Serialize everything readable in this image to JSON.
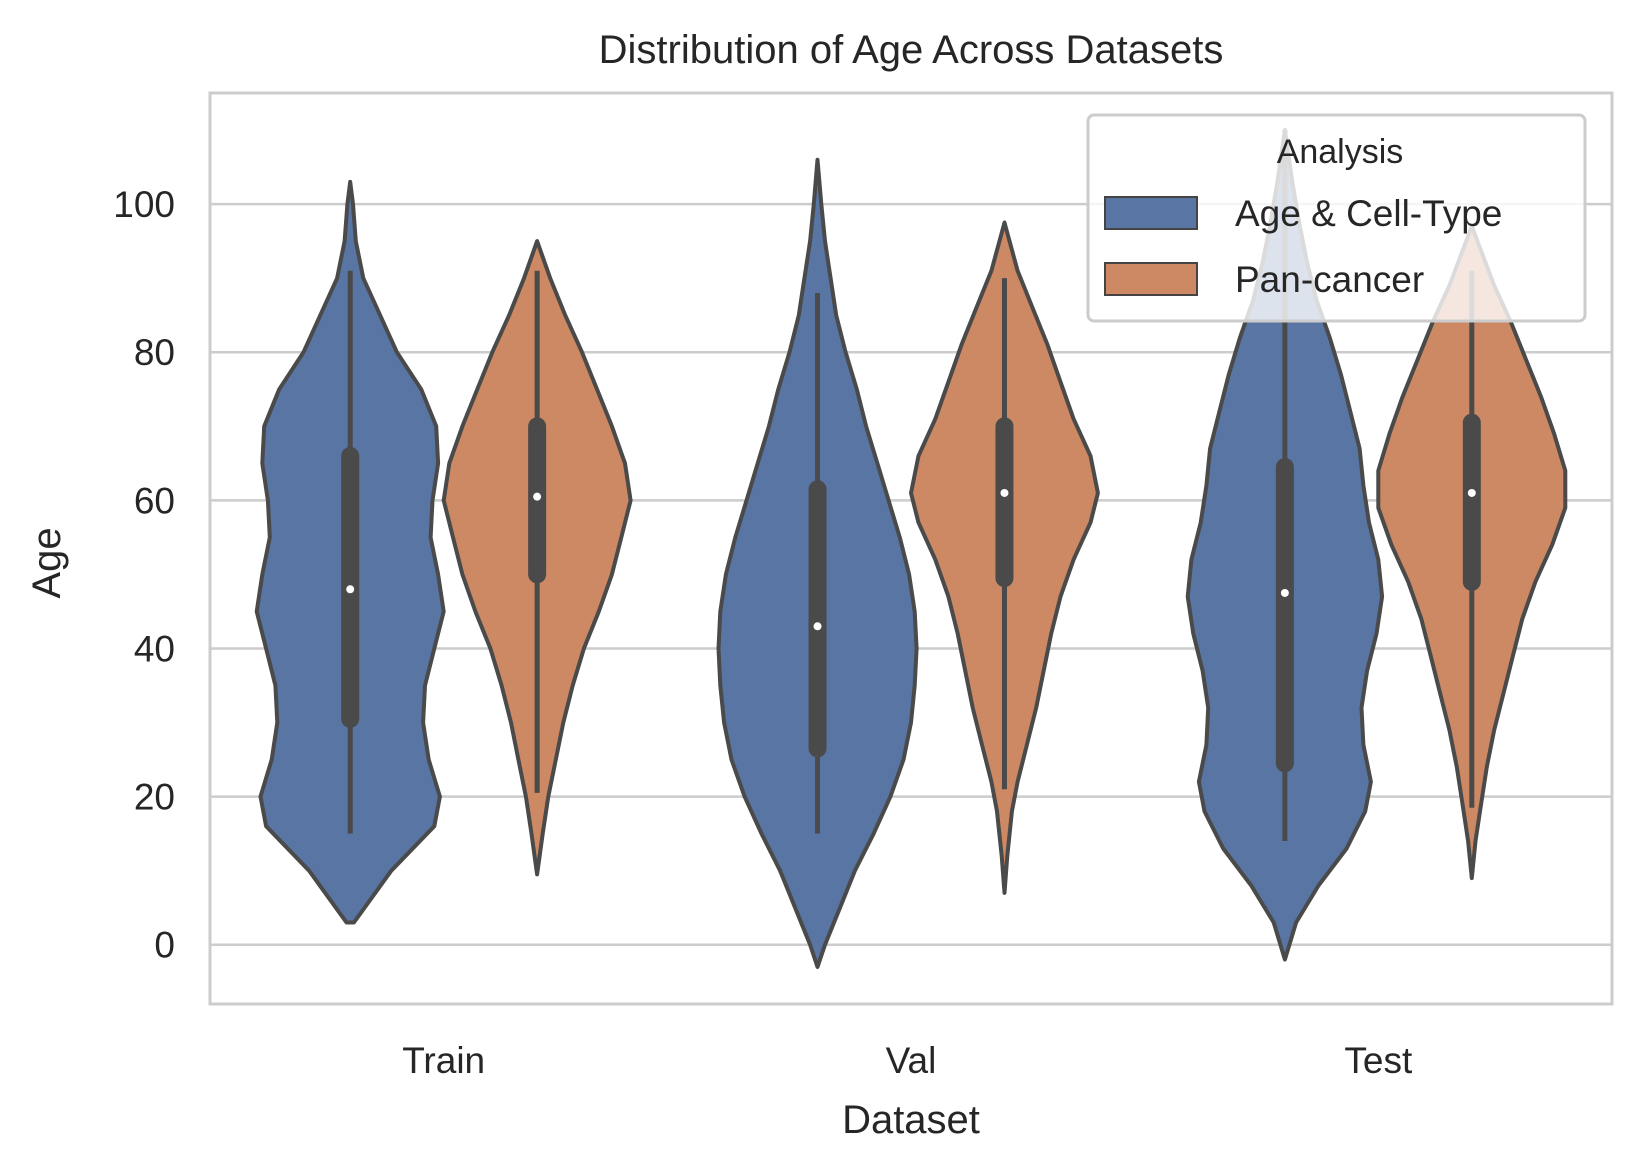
{
  "chart_data": {
    "type": "violin",
    "title": "Distribution of Age Across Datasets",
    "xlabel": "Dataset",
    "ylabel": "Age",
    "categories": [
      "Train",
      "Val",
      "Test"
    ],
    "ylim": [
      -8,
      115
    ],
    "yticks": [
      0,
      20,
      40,
      60,
      80,
      100
    ],
    "grid": "horizontal",
    "legend": {
      "title": "Analysis",
      "placement": "top-right",
      "entries": [
        "Age & Cell-Type",
        "Pan-cancer"
      ]
    },
    "series": [
      {
        "name": "Age & Cell-Type",
        "color": "#5875a4",
        "violins": [
          {
            "category": "Train",
            "min": 3,
            "max": 103,
            "whisker_low": 15,
            "whisker_high": 91,
            "q1": 30.5,
            "median": 48,
            "q3": 66,
            "profile": [
              [
                3,
                0.02
              ],
              [
                10,
                0.22
              ],
              [
                16,
                0.45
              ],
              [
                20,
                0.48
              ],
              [
                25,
                0.42
              ],
              [
                30,
                0.39
              ],
              [
                35,
                0.4
              ],
              [
                40,
                0.45
              ],
              [
                45,
                0.5
              ],
              [
                50,
                0.47
              ],
              [
                55,
                0.43
              ],
              [
                60,
                0.44
              ],
              [
                65,
                0.47
              ],
              [
                70,
                0.46
              ],
              [
                75,
                0.38
              ],
              [
                80,
                0.25
              ],
              [
                85,
                0.16
              ],
              [
                90,
                0.07
              ],
              [
                95,
                0.03
              ],
              [
                100,
                0.015
              ],
              [
                103,
                0
              ]
            ]
          },
          {
            "category": "Val",
            "min": -3,
            "max": 106,
            "whisker_low": 15,
            "whisker_high": 88,
            "q1": 26.5,
            "median": 43,
            "q3": 61.5,
            "profile": [
              [
                -3,
                0
              ],
              [
                0,
                0.04
              ],
              [
                5,
                0.12
              ],
              [
                10,
                0.2
              ],
              [
                15,
                0.3
              ],
              [
                20,
                0.39
              ],
              [
                25,
                0.46
              ],
              [
                30,
                0.5
              ],
              [
                35,
                0.52
              ],
              [
                40,
                0.53
              ],
              [
                45,
                0.52
              ],
              [
                50,
                0.49
              ],
              [
                55,
                0.44
              ],
              [
                60,
                0.38
              ],
              [
                65,
                0.32
              ],
              [
                70,
                0.26
              ],
              [
                75,
                0.21
              ],
              [
                80,
                0.15
              ],
              [
                85,
                0.1
              ],
              [
                90,
                0.07
              ],
              [
                95,
                0.04
              ],
              [
                100,
                0.02
              ],
              [
                106,
                0
              ]
            ]
          },
          {
            "category": "Test",
            "min": -2,
            "max": 110,
            "whisker_low": 14,
            "whisker_high": 110,
            "q1": 24.5,
            "median": 47.5,
            "q3": 64.5,
            "profile": [
              [
                -2,
                0
              ],
              [
                3,
                0.06
              ],
              [
                8,
                0.18
              ],
              [
                13,
                0.33
              ],
              [
                18,
                0.43
              ],
              [
                22,
                0.46
              ],
              [
                27,
                0.42
              ],
              [
                32,
                0.41
              ],
              [
                37,
                0.44
              ],
              [
                42,
                0.49
              ],
              [
                47,
                0.52
              ],
              [
                52,
                0.5
              ],
              [
                57,
                0.45
              ],
              [
                62,
                0.42
              ],
              [
                67,
                0.4
              ],
              [
                72,
                0.35
              ],
              [
                77,
                0.3
              ],
              [
                82,
                0.24
              ],
              [
                87,
                0.17
              ],
              [
                92,
                0.12
              ],
              [
                97,
                0.08
              ],
              [
                103,
                0.04
              ],
              [
                110,
                0
              ]
            ]
          }
        ]
      },
      {
        "name": "Pan-cancer",
        "color": "#cc8963",
        "violins": [
          {
            "category": "Train",
            "min": 9.5,
            "max": 95,
            "whisker_low": 20.5,
            "whisker_high": 91,
            "q1": 50,
            "median": 60.5,
            "q3": 70,
            "profile": [
              [
                9.5,
                0
              ],
              [
                15,
                0.03
              ],
              [
                20,
                0.06
              ],
              [
                25,
                0.1
              ],
              [
                30,
                0.14
              ],
              [
                35,
                0.19
              ],
              [
                40,
                0.25
              ],
              [
                45,
                0.33
              ],
              [
                50,
                0.4
              ],
              [
                55,
                0.45
              ],
              [
                60,
                0.5
              ],
              [
                65,
                0.47
              ],
              [
                70,
                0.4
              ],
              [
                75,
                0.32
              ],
              [
                80,
                0.24
              ],
              [
                85,
                0.15
              ],
              [
                90,
                0.07
              ],
              [
                95,
                0
              ]
            ]
          },
          {
            "category": "Val",
            "min": 7,
            "max": 97.5,
            "whisker_low": 21,
            "whisker_high": 90,
            "q1": 49.5,
            "median": 61,
            "q3": 70,
            "profile": [
              [
                7,
                0
              ],
              [
                12,
                0.015
              ],
              [
                18,
                0.04
              ],
              [
                22,
                0.07
              ],
              [
                27,
                0.12
              ],
              [
                32,
                0.17
              ],
              [
                37,
                0.21
              ],
              [
                42,
                0.25
              ],
              [
                47,
                0.3
              ],
              [
                52,
                0.37
              ],
              [
                57,
                0.46
              ],
              [
                61,
                0.5
              ],
              [
                66,
                0.46
              ],
              [
                71,
                0.37
              ],
              [
                76,
                0.3
              ],
              [
                81,
                0.23
              ],
              [
                86,
                0.15
              ],
              [
                91,
                0.07
              ],
              [
                97.5,
                0
              ]
            ]
          },
          {
            "category": "Test",
            "min": 9,
            "max": 97,
            "whisker_low": 18.5,
            "whisker_high": 91,
            "q1": 49,
            "median": 61,
            "q3": 70.5,
            "profile": [
              [
                9,
                0
              ],
              [
                14,
                0.02
              ],
              [
                19,
                0.05
              ],
              [
                24,
                0.08
              ],
              [
                29,
                0.12
              ],
              [
                34,
                0.17
              ],
              [
                39,
                0.22
              ],
              [
                44,
                0.27
              ],
              [
                49,
                0.34
              ],
              [
                54,
                0.43
              ],
              [
                59,
                0.5
              ],
              [
                64,
                0.5
              ],
              [
                69,
                0.44
              ],
              [
                74,
                0.37
              ],
              [
                79,
                0.29
              ],
              [
                84,
                0.21
              ],
              [
                89,
                0.12
              ],
              [
                93,
                0.06
              ],
              [
                97,
                0
              ]
            ]
          }
        ]
      }
    ]
  }
}
